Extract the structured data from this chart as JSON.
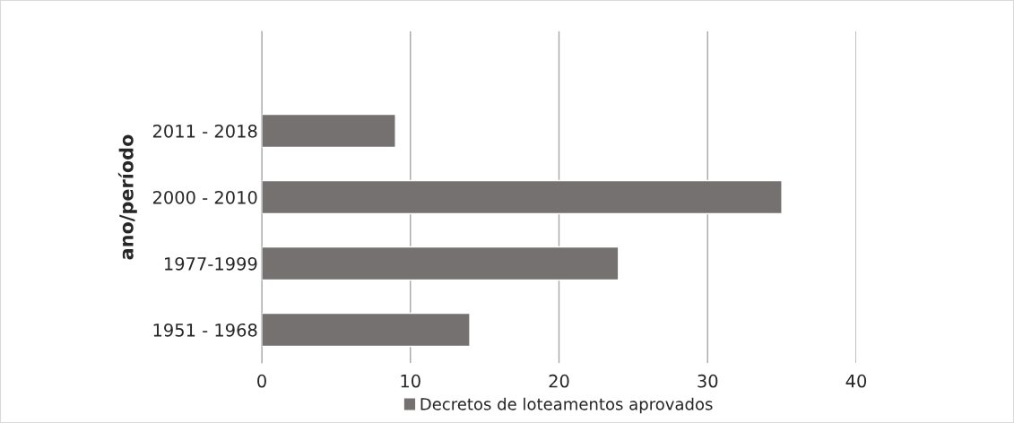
{
  "chart_data": {
    "type": "bar",
    "orientation": "horizontal",
    "ylabel": "ano/período",
    "categories": [
      null,
      "2011 - 2018",
      "2000 - 2010",
      "1977-1999",
      "1951 - 1968"
    ],
    "series": [
      {
        "name": "Decretos de loteamentos aprovados",
        "color": "#767171",
        "values": [
          null,
          9,
          35,
          24,
          14
        ]
      }
    ],
    "xlim": [
      0,
      40
    ],
    "xticks": [
      0,
      10,
      20,
      30,
      40
    ],
    "grid": "x",
    "legend": "bottom"
  }
}
